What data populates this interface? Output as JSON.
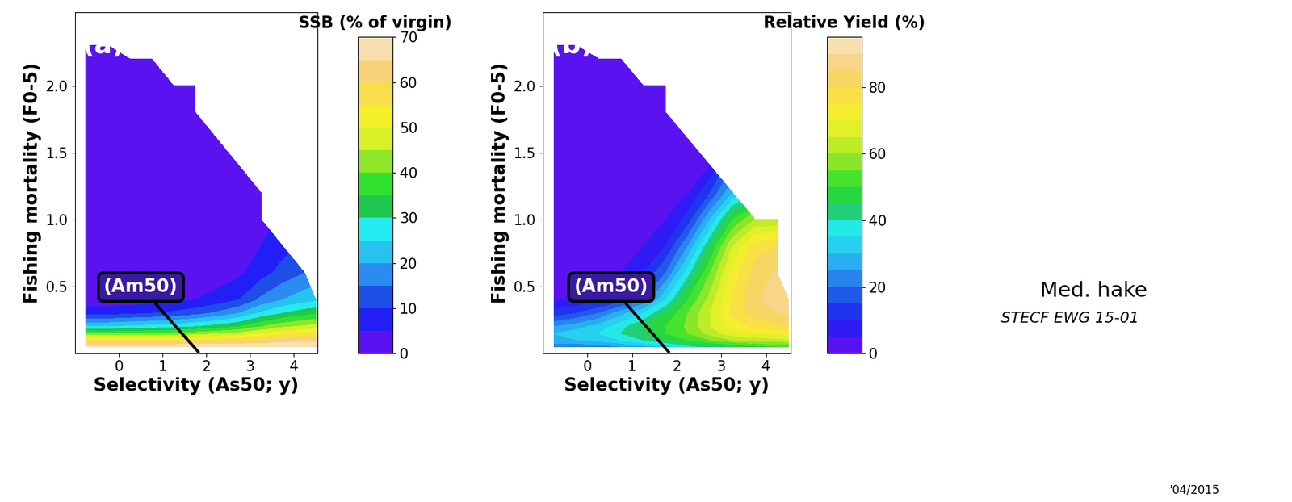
{
  "chart_data": [
    {
      "type": "contour",
      "label": "(a)",
      "x_label": "Selectivity (As50; y)",
      "y_label": "Fishing mortality (F0-5)",
      "xlim": [
        -1.0,
        4.55
      ],
      "ylim": [
        0,
        2.55
      ],
      "xticks": [
        0,
        1,
        2,
        3,
        4
      ],
      "yticks": [
        {
          "value": 0.5,
          "label": "0.5"
        },
        {
          "value": 1,
          "label": "1.0"
        },
        {
          "value": 1.5,
          "label": "1.5"
        },
        {
          "value": 2,
          "label": "2.0"
        }
      ],
      "x": [
        -0.75,
        -0.25,
        0.25,
        0.75,
        1.25,
        1.75,
        2.25,
        2.75,
        3.25,
        3.75,
        4.25,
        4.5
      ],
      "y": [
        0.05,
        0.1,
        0.15,
        0.2,
        0.3,
        0.4,
        0.6,
        0.8,
        1.0,
        1.2,
        1.4,
        1.6,
        1.8,
        2.0,
        2.2,
        2.3
      ],
      "z": [
        [
          70,
          70,
          70,
          70,
          70,
          70,
          70,
          70,
          70,
          70,
          70,
          70
        ],
        [
          55,
          55,
          55,
          55,
          55,
          56,
          57,
          58,
          60,
          62,
          63,
          64
        ],
        [
          40,
          40,
          40,
          40,
          41,
          42,
          44,
          46,
          50,
          53,
          55,
          56
        ],
        [
          25,
          25,
          26,
          27,
          28,
          30,
          32,
          35,
          40,
          44,
          46,
          47
        ],
        [
          8,
          8,
          9,
          10,
          11,
          13,
          16,
          20,
          26,
          30,
          33,
          34
        ],
        [
          2,
          2,
          2,
          3,
          4,
          5,
          7,
          10,
          16,
          20,
          23,
          24
        ],
        [
          0,
          0,
          0,
          0,
          1,
          1,
          2,
          4,
          8,
          12,
          15,
          null
        ],
        [
          0,
          0,
          0,
          0,
          0,
          0,
          1,
          2,
          5,
          8,
          null,
          null
        ],
        [
          0,
          0,
          0,
          0,
          0,
          0,
          0,
          1,
          3,
          null,
          null,
          null
        ],
        [
          0,
          0,
          0,
          0,
          0,
          0,
          0,
          1,
          2,
          null,
          null,
          null
        ],
        [
          0,
          0,
          0,
          0,
          0,
          0,
          0,
          1,
          null,
          null,
          null,
          null
        ],
        [
          0,
          0,
          0,
          0,
          0,
          0,
          0,
          null,
          null,
          null,
          null,
          null
        ],
        [
          0,
          0,
          0,
          0,
          0,
          0,
          null,
          null,
          null,
          null,
          null,
          null
        ],
        [
          0,
          0,
          0,
          0,
          0,
          0,
          null,
          null,
          null,
          null,
          null,
          null
        ],
        [
          0,
          0,
          0,
          0,
          null,
          null,
          null,
          null,
          null,
          null,
          null,
          null
        ],
        [
          0,
          0,
          null,
          null,
          null,
          null,
          null,
          null,
          null,
          null,
          null,
          null
        ]
      ],
      "colorbar": {
        "title": "SSB (% of virgin)",
        "range": [
          0,
          70
        ],
        "ticks": [
          0,
          10,
          20,
          30,
          40,
          50,
          60,
          70
        ],
        "levels": [
          0,
          5,
          10,
          15,
          20,
          25,
          30,
          35,
          40,
          45,
          50,
          55,
          60,
          65,
          70
        ]
      },
      "annotations": [
        {
          "text": "(Am50)",
          "x": 1.85,
          "y": 0
        }
      ]
    },
    {
      "type": "contour",
      "label": "(b)",
      "x_label": "Selectivity (As50; y)",
      "y_label": "Fishing mortality (F0-5)",
      "xlim": [
        -1.0,
        4.55
      ],
      "ylim": [
        0,
        2.55
      ],
      "xticks": [
        0,
        1,
        2,
        3,
        4
      ],
      "yticks": [
        {
          "value": 0.5,
          "label": "0.5"
        },
        {
          "value": 1,
          "label": "1.0"
        },
        {
          "value": 1.5,
          "label": "1.5"
        },
        {
          "value": 2,
          "label": "2.0"
        }
      ],
      "x": [
        -0.75,
        -0.25,
        0.25,
        0.75,
        1.25,
        1.75,
        2.25,
        2.75,
        3.25,
        3.75,
        4.25,
        4.5
      ],
      "y": [
        0.05,
        0.1,
        0.15,
        0.2,
        0.3,
        0.4,
        0.6,
        0.8,
        1.0,
        1.2,
        1.4,
        1.6,
        1.8,
        2.0,
        2.2,
        2.3
      ],
      "z": [
        [
          20,
          20,
          22,
          25,
          28,
          32,
          38,
          42,
          45,
          48,
          50,
          50
        ],
        [
          30,
          30,
          32,
          35,
          40,
          45,
          50,
          55,
          60,
          62,
          63,
          64
        ],
        [
          30,
          32,
          35,
          40,
          45,
          50,
          55,
          62,
          68,
          70,
          72,
          72
        ],
        [
          25,
          28,
          32,
          38,
          45,
          50,
          56,
          65,
          72,
          76,
          78,
          80
        ],
        [
          12,
          15,
          20,
          28,
          35,
          45,
          55,
          65,
          76,
          82,
          85,
          86
        ],
        [
          5,
          6,
          8,
          12,
          20,
          35,
          50,
          62,
          76,
          84,
          88,
          88
        ],
        [
          0,
          0,
          2,
          5,
          10,
          20,
          38,
          55,
          72,
          82,
          86,
          null
        ],
        [
          0,
          0,
          0,
          2,
          5,
          10,
          25,
          45,
          65,
          78,
          80,
          null
        ],
        [
          0,
          0,
          0,
          0,
          2,
          5,
          12,
          30,
          50,
          60,
          60,
          null
        ],
        [
          0,
          0,
          0,
          0,
          0,
          2,
          5,
          15,
          30,
          null,
          null,
          null
        ],
        [
          0,
          0,
          0,
          0,
          0,
          0,
          2,
          5,
          null,
          null,
          null,
          null
        ],
        [
          0,
          0,
          0,
          0,
          0,
          0,
          0,
          null,
          null,
          null,
          null,
          null
        ],
        [
          0,
          0,
          0,
          0,
          0,
          0,
          null,
          null,
          null,
          null,
          null,
          null
        ],
        [
          0,
          0,
          0,
          0,
          0,
          0,
          null,
          null,
          null,
          null,
          null,
          null
        ],
        [
          0,
          0,
          0,
          0,
          null,
          null,
          null,
          null,
          null,
          null,
          null,
          null
        ],
        [
          0,
          0,
          null,
          null,
          null,
          null,
          null,
          null,
          null,
          null,
          null,
          null
        ]
      ],
      "colorbar": {
        "title": "Relative Yield (%)",
        "range": [
          0,
          95
        ],
        "ticks": [
          0,
          20,
          40,
          60,
          80
        ],
        "levels": [
          0,
          5,
          10,
          15,
          20,
          25,
          30,
          35,
          40,
          45,
          50,
          55,
          60,
          65,
          70,
          75,
          80,
          85,
          90,
          95
        ]
      },
      "annotations": [
        {
          "text": "(Am50)",
          "x": 1.85,
          "y": 0
        }
      ]
    }
  ],
  "texts": {
    "species": "Med. hake",
    "source": "STECF EWG 15-01",
    "date": "'04/2015"
  }
}
